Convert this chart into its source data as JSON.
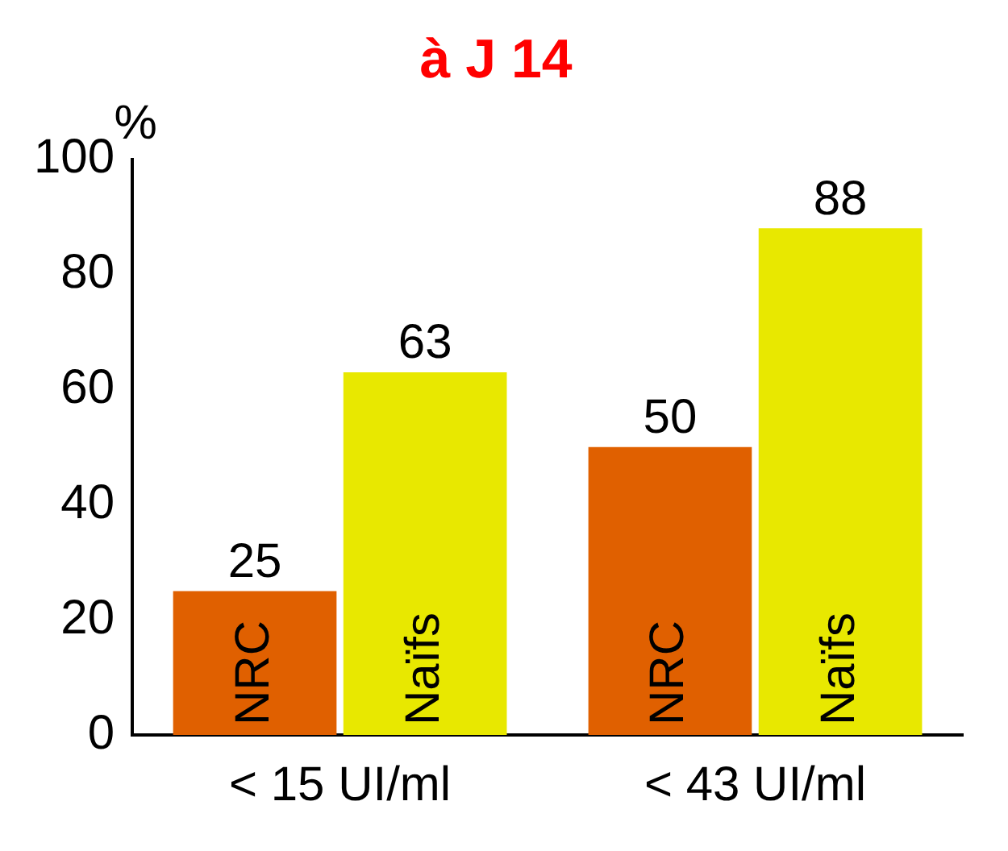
{
  "chart_data": {
    "type": "bar",
    "title": "à J 14",
    "ylabel": "%",
    "categories": [
      "< 15 UI/ml",
      "< 43 UI/ml"
    ],
    "series": [
      {
        "name": "NRC",
        "color": "#e06000",
        "values": [
          25,
          50
        ]
      },
      {
        "name": "Naïfs",
        "color": "#e8e800",
        "values": [
          63,
          88
        ]
      }
    ],
    "ylim": [
      0,
      100
    ],
    "yticks": [
      0,
      20,
      40,
      60,
      80,
      100
    ],
    "grid": false,
    "legend": false,
    "data_labels": true
  }
}
